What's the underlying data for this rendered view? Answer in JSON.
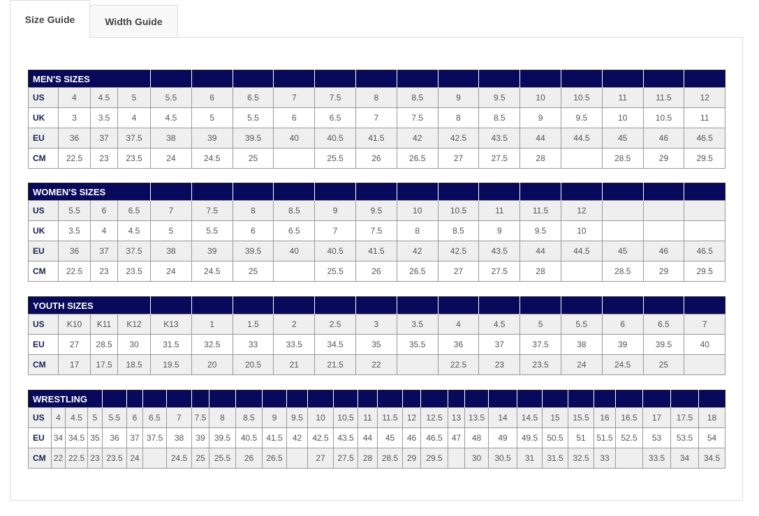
{
  "tabs": [
    {
      "label": "Size Guide",
      "active": true
    },
    {
      "label": "Width Guide",
      "active": false
    }
  ],
  "colors": {
    "header": "#08095a",
    "row_shade": "#efefef"
  },
  "tables": [
    {
      "title": "MEN'S SIZES",
      "rows": [
        {
          "label": "US",
          "values": [
            "4",
            "4.5",
            "5",
            "5.5",
            "6",
            "6.5",
            "7",
            "7.5",
            "8",
            "8.5",
            "9",
            "9.5",
            "10",
            "10.5",
            "11",
            "11.5",
            "12"
          ]
        },
        {
          "label": "UK",
          "values": [
            "3",
            "3.5",
            "4",
            "4.5",
            "5",
            "5.5",
            "6",
            "6.5",
            "7",
            "7.5",
            "8",
            "8.5",
            "9",
            "9.5",
            "10",
            "10.5",
            "11"
          ]
        },
        {
          "label": "EU",
          "values": [
            "36",
            "37",
            "37.5",
            "38",
            "39",
            "39.5",
            "40",
            "40.5",
            "41.5",
            "42",
            "42.5",
            "43.5",
            "44",
            "44.5",
            "45",
            "46",
            "46.5"
          ]
        },
        {
          "label": "CM",
          "values": [
            "22.5",
            "23",
            "23.5",
            "24",
            "24.5",
            "25",
            "",
            "25.5",
            "26",
            "26.5",
            "27",
            "27.5",
            "28",
            "",
            "28.5",
            "29",
            "29.5"
          ]
        }
      ]
    },
    {
      "title": "WOMEN'S SIZES",
      "rows": [
        {
          "label": "US",
          "values": [
            "5.5",
            "6",
            "6.5",
            "7",
            "7.5",
            "8",
            "8.5",
            "9",
            "9.5",
            "10",
            "10.5",
            "11",
            "11.5",
            "12",
            "",
            "",
            ""
          ]
        },
        {
          "label": "UK",
          "values": [
            "3.5",
            "4",
            "4.5",
            "5",
            "5.5",
            "6",
            "6.5",
            "7",
            "7.5",
            "8",
            "8.5",
            "9",
            "9.5",
            "10",
            "",
            "",
            ""
          ]
        },
        {
          "label": "EU",
          "values": [
            "36",
            "37",
            "37.5",
            "38",
            "39",
            "39.5",
            "40",
            "40.5",
            "41.5",
            "42",
            "42.5",
            "43.5",
            "44",
            "44.5",
            "45",
            "46",
            "46.5"
          ]
        },
        {
          "label": "CM",
          "values": [
            "22.5",
            "23",
            "23.5",
            "24",
            "24.5",
            "25",
            "",
            "25.5",
            "26",
            "26.5",
            "27",
            "27.5",
            "28",
            "",
            "28.5",
            "29",
            "29.5"
          ]
        }
      ]
    },
    {
      "title": "YOUTH SIZES",
      "rows": [
        {
          "label": "US",
          "values": [
            "K10",
            "K11",
            "K12",
            "K13",
            "1",
            "1.5",
            "2",
            "2.5",
            "3",
            "3.5",
            "4",
            "4.5",
            "5",
            "5.5",
            "6",
            "6.5",
            "7"
          ]
        },
        {
          "label": "EU",
          "values": [
            "27",
            "28.5",
            "30",
            "31.5",
            "32.5",
            "33",
            "33.5",
            "34.5",
            "35",
            "35.5",
            "36",
            "37",
            "37.5",
            "38",
            "39",
            "39.5",
            "40"
          ]
        },
        {
          "label": "CM",
          "values": [
            "17",
            "17.5",
            "18.5",
            "19.5",
            "20",
            "20.5",
            "21",
            "21.5",
            "22",
            "",
            "22.5",
            "23",
            "23.5",
            "24",
            "24.5",
            "25",
            ""
          ]
        }
      ]
    },
    {
      "title": "WRESTLING",
      "rows": [
        {
          "label": "US",
          "values": [
            "4",
            "4.5",
            "5",
            "5.5",
            "6",
            "6.5",
            "7",
            "7.5",
            "8",
            "8.5",
            "9",
            "9.5",
            "10",
            "10.5",
            "11",
            "11.5",
            "12",
            "12.5",
            "13",
            "13.5",
            "14",
            "14.5",
            "15",
            "15.5",
            "16",
            "16.5",
            "17",
            "17.5",
            "18"
          ]
        },
        {
          "label": "EU",
          "values": [
            "34",
            "34.5",
            "35",
            "36",
            "37",
            "37.5",
            "38",
            "39",
            "39.5",
            "40.5",
            "41.5",
            "42",
            "42.5",
            "43.5",
            "44",
            "45",
            "46",
            "46.5",
            "47",
            "48",
            "49",
            "49.5",
            "50.5",
            "51",
            "51.5",
            "52.5",
            "53",
            "53.5",
            "54"
          ]
        },
        {
          "label": "CM",
          "values": [
            "22",
            "22.5",
            "23",
            "23.5",
            "24",
            "",
            "24.5",
            "25",
            "25.5",
            "26",
            "26.5",
            "",
            "27",
            "27.5",
            "28",
            "28.5",
            "29",
            "29.5",
            "",
            "30",
            "30.5",
            "31",
            "31.5",
            "32.5",
            "33",
            "",
            "33.5",
            "34",
            "34.5"
          ]
        }
      ]
    }
  ]
}
